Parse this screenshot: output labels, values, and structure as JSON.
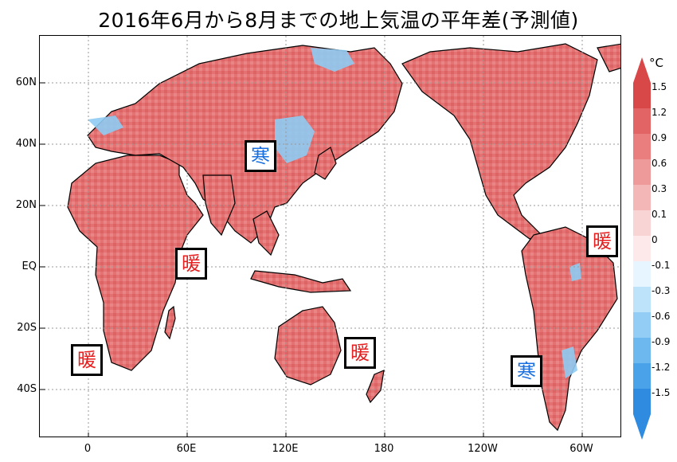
{
  "title": "2016年6月から8月までの地上気温の平年差(予測値)",
  "lat_labels": [
    "60N",
    "40N",
    "20N",
    "EQ",
    "20S",
    "40S"
  ],
  "lon_labels": [
    "0",
    "60E",
    "120E",
    "180",
    "120W",
    "60W"
  ],
  "badges": [
    {
      "region": "east-asia",
      "text": "寒",
      "type": "cold"
    },
    {
      "region": "indian-ocean",
      "text": "暖",
      "type": "warm"
    },
    {
      "region": "southern-africa",
      "text": "暖",
      "type": "warm"
    },
    {
      "region": "tasman-sea",
      "text": "暖",
      "type": "warm"
    },
    {
      "region": "south-america-east",
      "text": "暖",
      "type": "warm"
    },
    {
      "region": "south-america-south",
      "text": "寒",
      "type": "cold"
    }
  ],
  "colorbar": {
    "unit": "°C",
    "labels": [
      "1.5",
      "1.2",
      "0.9",
      "0.6",
      "0.3",
      "0.1",
      "0",
      "-0.1",
      "-0.3",
      "-0.6",
      "-0.9",
      "-1.2",
      "-1.5"
    ],
    "colors": [
      "#d84848",
      "#e36464",
      "#ea7e7e",
      "#ef9a9a",
      "#f4b7b7",
      "#f9d4d4",
      "#fde9e9",
      "#e6f5ff",
      "#bde3fb",
      "#93cdf5",
      "#6cb8ef",
      "#4aa2e8",
      "#2e8be0"
    ]
  },
  "colors": {
    "land_warm": "#e47272",
    "land_warm_light": "#f0a0a0",
    "land_cold": "#8fcbf2",
    "ocean": "#ffffff",
    "grid": "#9a9a9a"
  }
}
